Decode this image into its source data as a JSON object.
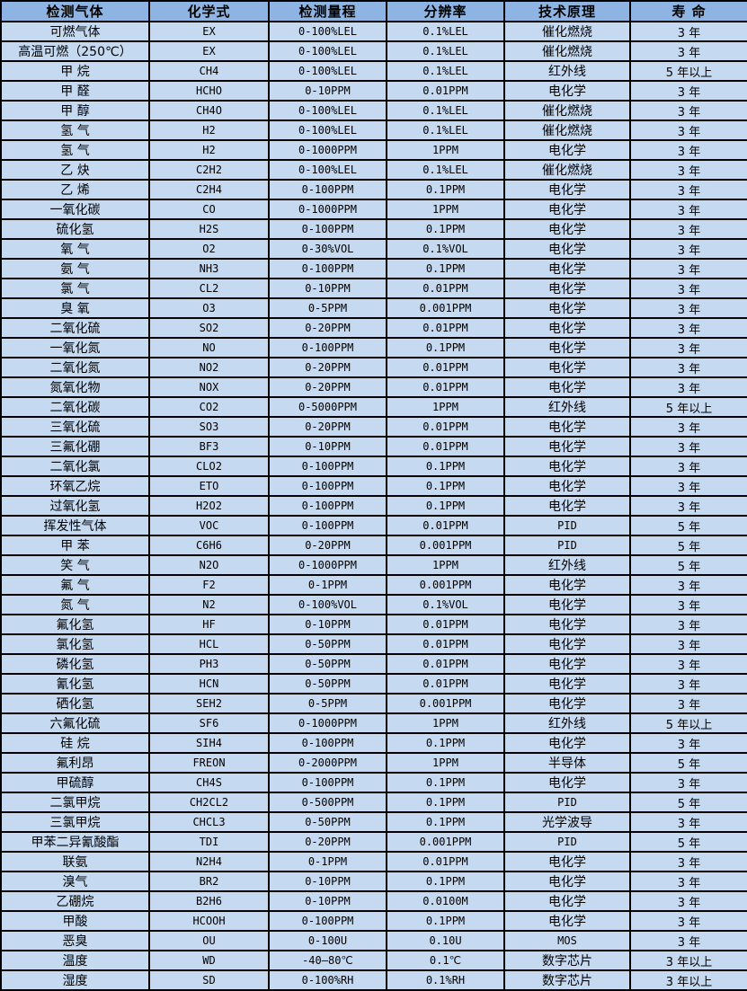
{
  "colors": {
    "header_bg": "#8db4e2",
    "row_bg": "#c5d9f1",
    "border": "#000000",
    "text": "#000000"
  },
  "table": {
    "columns": [
      "检测气体",
      "化学式",
      "检测量程",
      "分辨率",
      "技术原理",
      "寿 命"
    ],
    "rows": [
      [
        "可燃气体",
        "EX",
        "0-100%LEL",
        "0.1%LEL",
        "催化燃烧",
        "3 年"
      ],
      [
        "高温可燃（250℃）",
        "EX",
        "0-100%LEL",
        "0.1%LEL",
        "催化燃烧",
        "3 年"
      ],
      [
        "甲 烷",
        "CH4",
        "0-100%LEL",
        "0.1%LEL",
        "红外线",
        "5 年以上"
      ],
      [
        "甲 醛",
        "HCHO",
        "0-10PPM",
        "0.01PPM",
        "电化学",
        "3 年"
      ],
      [
        "甲 醇",
        "CH4O",
        "0-100%LEL",
        "0.1%LEL",
        "催化燃烧",
        "3 年"
      ],
      [
        "氢 气",
        "H2",
        "0-100%LEL",
        "0.1%LEL",
        "催化燃烧",
        "3 年"
      ],
      [
        "氢 气",
        "H2",
        "0-1000PPM",
        "1PPM",
        "电化学",
        "3 年"
      ],
      [
        "乙 炔",
        "C2H2",
        "0-100%LEL",
        "0.1%LEL",
        "催化燃烧",
        "3 年"
      ],
      [
        "乙 烯",
        "C2H4",
        "0-100PPM",
        "0.1PPM",
        "电化学",
        "3 年"
      ],
      [
        "一氧化碳",
        "CO",
        "0-1000PPM",
        "1PPM",
        "电化学",
        "3 年"
      ],
      [
        "硫化氢",
        "H2S",
        "0-100PPM",
        "0.1PPM",
        "电化学",
        "3 年"
      ],
      [
        "氧 气",
        "O2",
        "0-30%VOL",
        "0.1%VOL",
        "电化学",
        "3 年"
      ],
      [
        "氨 气",
        "NH3",
        "0-100PPM",
        "0.1PPM",
        "电化学",
        "3 年"
      ],
      [
        "氯 气",
        "CL2",
        "0-10PPM",
        "0.01PPM",
        "电化学",
        "3 年"
      ],
      [
        "臭 氧",
        "O3",
        "0-5PPM",
        "0.001PPM",
        "电化学",
        "3 年"
      ],
      [
        "二氧化硫",
        "SO2",
        "0-20PPM",
        "0.01PPM",
        "电化学",
        "3 年"
      ],
      [
        "一氧化氮",
        "NO",
        "0-100PPM",
        "0.1PPM",
        "电化学",
        "3 年"
      ],
      [
        "二氧化氮",
        "NO2",
        "0-20PPM",
        "0.01PPM",
        "电化学",
        "3 年"
      ],
      [
        "氮氧化物",
        "NOX",
        "0-20PPM",
        "0.01PPM",
        "电化学",
        "3 年"
      ],
      [
        "二氧化碳",
        "CO2",
        "0-5000PPM",
        "1PPM",
        "红外线",
        "5 年以上"
      ],
      [
        "三氧化硫",
        "SO3",
        "0-20PPM",
        "0.01PPM",
        "电化学",
        "3 年"
      ],
      [
        "三氟化硼",
        "BF3",
        "0-10PPM",
        "0.01PPM",
        "电化学",
        "3 年"
      ],
      [
        "二氧化氯",
        "CLO2",
        "0-100PPM",
        "0.1PPM",
        "电化学",
        "3 年"
      ],
      [
        "环氧乙烷",
        "ETO",
        "0-100PPM",
        "0.1PPM",
        "电化学",
        "3 年"
      ],
      [
        "过氧化氢",
        "H2O2",
        "0-100PPM",
        "0.1PPM",
        "电化学",
        "3 年"
      ],
      [
        "挥发性气体",
        "VOC",
        "0-100PPM",
        "0.01PPM",
        "PID",
        "5 年"
      ],
      [
        "甲 苯",
        "C6H6",
        "0-20PPM",
        "0.001PPM",
        "PID",
        "5 年"
      ],
      [
        "笑 气",
        "N2O",
        "0-1000PPM",
        "1PPM",
        "红外线",
        "5 年"
      ],
      [
        "氟 气",
        "F2",
        "0-1PPM",
        "0.001PPM",
        "电化学",
        "3 年"
      ],
      [
        "氮 气",
        "N2",
        "0-100%VOL",
        "0.1%VOL",
        "电化学",
        "3 年"
      ],
      [
        "氟化氢",
        "HF",
        "0-10PPM",
        "0.01PPM",
        "电化学",
        "3 年"
      ],
      [
        "氯化氢",
        "HCL",
        "0-50PPM",
        "0.01PPM",
        "电化学",
        "3 年"
      ],
      [
        "磷化氢",
        "PH3",
        "0-50PPM",
        "0.01PPM",
        "电化学",
        "3 年"
      ],
      [
        "氰化氢",
        "HCN",
        "0-50PPM",
        "0.01PPM",
        "电化学",
        "3 年"
      ],
      [
        "硒化氢",
        "SEH2",
        "0-5PPM",
        "0.001PPM",
        "电化学",
        "3 年"
      ],
      [
        "六氟化硫",
        "SF6",
        "0-1000PPM",
        "1PPM",
        "红外线",
        "5 年以上"
      ],
      [
        "硅 烷",
        "SIH4",
        "0-100PPM",
        "0.1PPM",
        "电化学",
        "3 年"
      ],
      [
        "氟利昂",
        "FREON",
        "0-2000PPM",
        "1PPM",
        "半导体",
        "5 年"
      ],
      [
        "甲硫醇",
        "CH4S",
        "0-100PPM",
        "0.1PPM",
        "电化学",
        "3 年"
      ],
      [
        "二氯甲烷",
        "CH2CL2",
        "0-500PPM",
        "0.1PPM",
        "PID",
        "5 年"
      ],
      [
        "三氯甲烷",
        "CHCL3",
        "0-50PPM",
        "0.1PPM",
        "光学波导",
        "3 年"
      ],
      [
        "甲苯二异氰酸酯",
        "TDI",
        "0-20PPM",
        "0.001PPM",
        "PID",
        "5 年"
      ],
      [
        "联氨",
        "N2H4",
        "0-1PPM",
        "0.01PPM",
        "电化学",
        "3 年"
      ],
      [
        "溴气",
        "BR2",
        "0-10PPM",
        "0.1PPM",
        "电化学",
        "3 年"
      ],
      [
        "乙硼烷",
        "B2H6",
        "0-10PPM",
        "0.0100M",
        "电化学",
        "3 年"
      ],
      [
        "甲酸",
        "HCOOH",
        "0-100PPM",
        "0.1PPM",
        "电化学",
        "3 年"
      ],
      [
        "恶臭",
        "OU",
        "0-100U",
        "0.10U",
        "MOS",
        "3 年"
      ],
      [
        "温度",
        "WD",
        "-40—80℃",
        "0.1℃",
        "数字芯片",
        "3 年以上"
      ],
      [
        "湿度",
        "SD",
        "0-100%RH",
        "0.1%RH",
        "数字芯片",
        "3 年以上"
      ]
    ]
  }
}
